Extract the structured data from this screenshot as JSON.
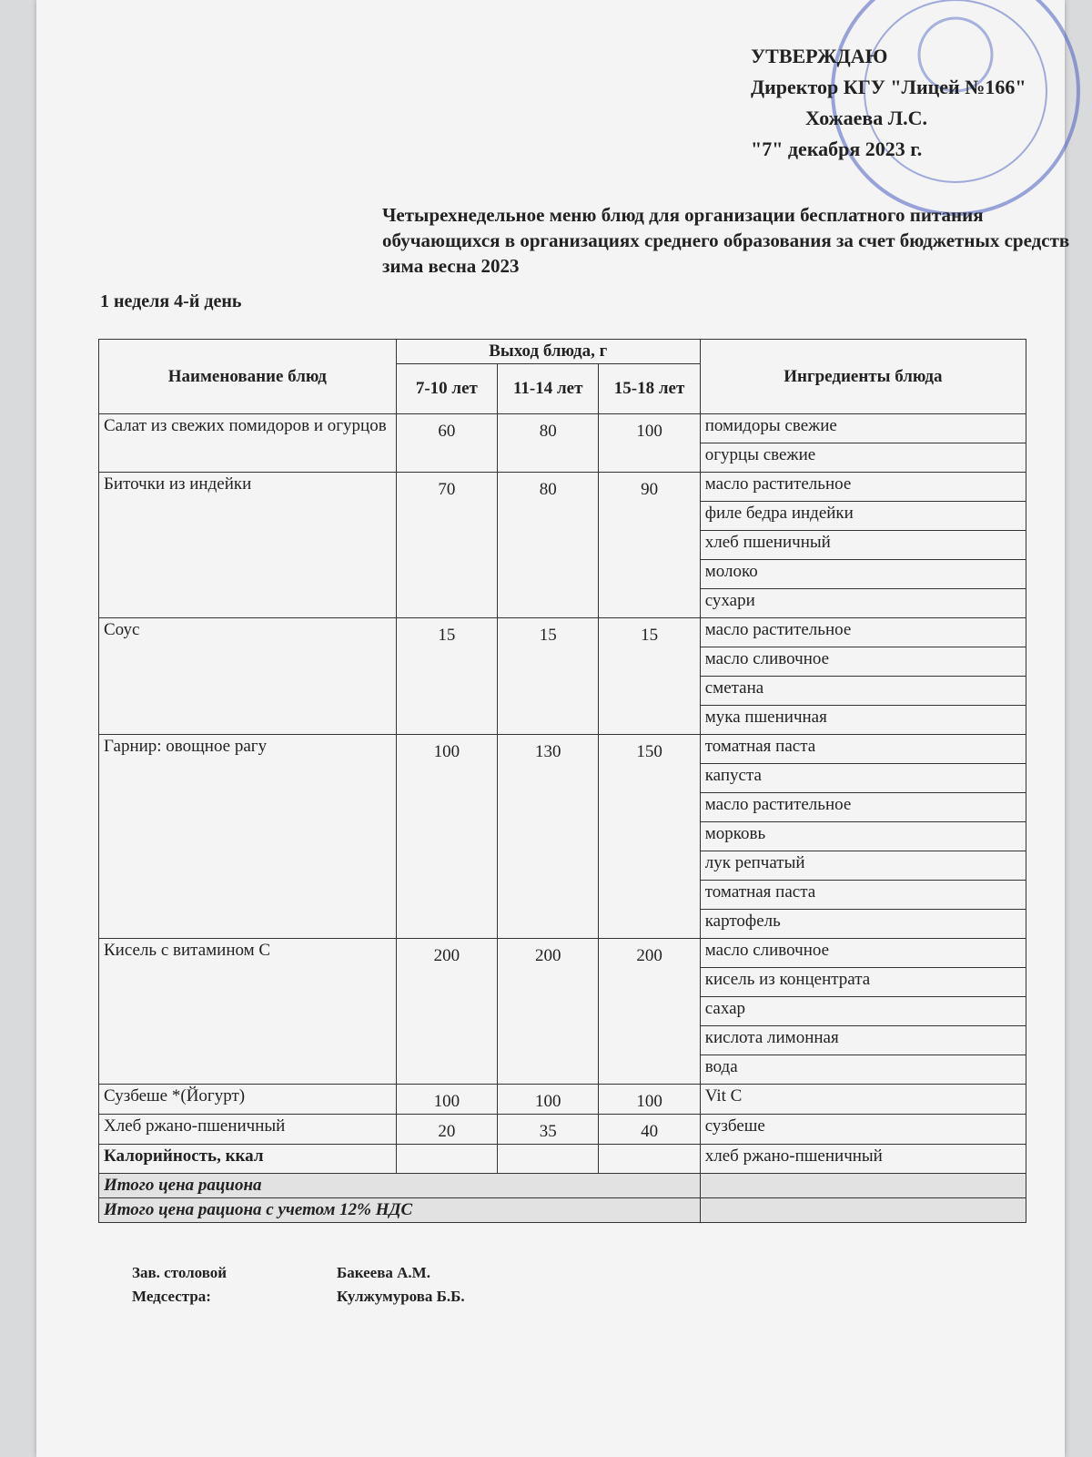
{
  "header": {
    "approval": {
      "heading": "УТВЕРЖДАЮ",
      "position": "Директор КГУ \"Лицей №166\"",
      "signatory": "Хожаева Л.С.",
      "date": "\"7\" декабря 2023 г."
    },
    "title": "Четырехнедельное меню блюд для организации бесплатного питания обучающихся в организациях среднего образования за счет бюджетных средств зима весна 2023",
    "day": "1 неделя 4-й день"
  },
  "table": {
    "columns": {
      "dish": "Наименование блюд",
      "yield": "Выход блюда, г",
      "ages": [
        "7-10 лет",
        "11-14 лет",
        "15-18 лет"
      ],
      "ingredients": "Ингредиенты блюда"
    },
    "rows": [
      {
        "dish": "Салат из свежих помидоров и огурцов",
        "values": [
          60,
          80,
          100
        ],
        "ingredients": [
          "помидоры свежие",
          "огурцы свежие"
        ]
      },
      {
        "dish": "Биточки из индейки",
        "values": [
          70,
          80,
          90
        ],
        "ingredients": [
          "масло растительное",
          "филе бедра индейки",
          "хлеб пшеничный",
          "молоко",
          "сухари"
        ]
      },
      {
        "dish": "Соус",
        "values": [
          15,
          15,
          15
        ],
        "ingredients": [
          "масло растительное",
          "масло сливочное",
          "сметана",
          "мука пшеничная"
        ]
      },
      {
        "dish": "Гарнир: овощное рагу",
        "values": [
          100,
          130,
          150
        ],
        "ingredients": [
          "томатная паста",
          "капуста",
          "масло растительное",
          "морковь",
          "лук репчатый",
          "томатная паста",
          "картофель"
        ]
      },
      {
        "dish": "Кисель с витамином С",
        "values": [
          200,
          200,
          200
        ],
        "ingredients": [
          "масло сливочное",
          "кисель из концентрата",
          "сахар",
          "кислота лимонная",
          "вода"
        ]
      },
      {
        "dish": "Сузбеше *(Йогурт)",
        "values": [
          100,
          100,
          100
        ],
        "ingredients": [
          "Vit C"
        ]
      },
      {
        "dish": "Хлеб ржано-пшеничный",
        "values": [
          20,
          35,
          40
        ],
        "ingredients": [
          "сузбеше"
        ]
      },
      {
        "dish": "Калорийность, ккал",
        "ingredients": [
          "хлеб ржано-пшеничный"
        ]
      }
    ],
    "totals": [
      "Итого цена рациона",
      "Итого цена рациона с учетом 12% НДС"
    ]
  },
  "footer": {
    "signatures": [
      {
        "role": "Зав. столовой",
        "name": "Бакеева А.М."
      },
      {
        "role": "Медсестра:",
        "name": "Кулжумурова Б.Б."
      }
    ]
  }
}
